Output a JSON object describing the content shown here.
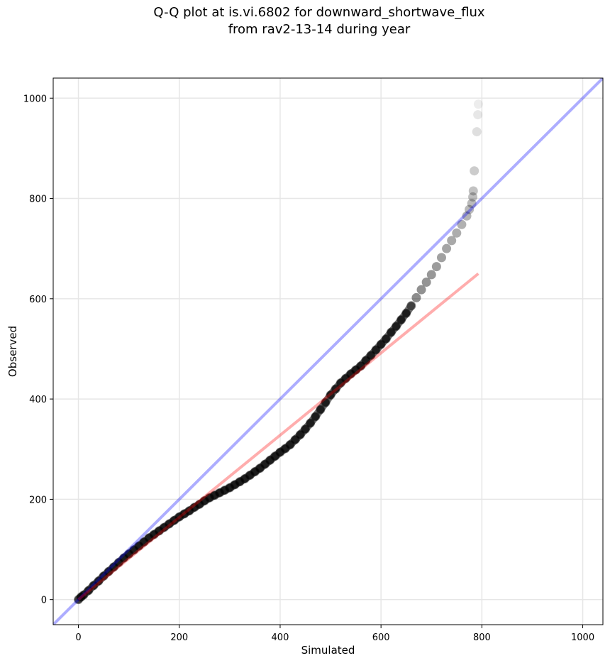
{
  "chart_data": {
    "type": "scatter",
    "title": [
      "Q-Q plot at is.vi.6802 for downward_shortwave_flux",
      "from rav2-13-14 during year"
    ],
    "xlabel": "Simulated",
    "ylabel": "Observed",
    "xlim": [
      -50,
      1040
    ],
    "ylim": [
      -50,
      1040
    ],
    "xticks": [
      0,
      200,
      400,
      600,
      800,
      1000
    ],
    "yticks": [
      0,
      200,
      400,
      600,
      800,
      1000
    ],
    "grid": true,
    "series": [
      {
        "kind": "quantile-points",
        "color": "#000000",
        "points": [
          [
            0,
            0
          ],
          [
            5,
            5
          ],
          [
            10,
            9
          ],
          [
            20,
            18
          ],
          [
            30,
            28
          ],
          [
            40,
            37
          ],
          [
            50,
            47
          ],
          [
            60,
            56
          ],
          [
            70,
            65
          ],
          [
            80,
            74
          ],
          [
            90,
            83
          ],
          [
            100,
            91
          ],
          [
            110,
            99
          ],
          [
            120,
            107
          ],
          [
            130,
            115
          ],
          [
            140,
            123
          ],
          [
            150,
            130
          ],
          [
            160,
            137
          ],
          [
            170,
            144
          ],
          [
            180,
            151
          ],
          [
            190,
            158
          ],
          [
            200,
            165
          ],
          [
            210,
            171
          ],
          [
            220,
            177
          ],
          [
            230,
            184
          ],
          [
            240,
            190
          ],
          [
            250,
            197
          ],
          [
            260,
            203
          ],
          [
            270,
            208
          ],
          [
            280,
            213
          ],
          [
            290,
            218
          ],
          [
            300,
            223
          ],
          [
            310,
            229
          ],
          [
            320,
            235
          ],
          [
            330,
            241
          ],
          [
            340,
            248
          ],
          [
            350,
            255
          ],
          [
            360,
            262
          ],
          [
            370,
            270
          ],
          [
            380,
            278
          ],
          [
            390,
            286
          ],
          [
            400,
            294
          ],
          [
            410,
            301
          ],
          [
            420,
            309
          ],
          [
            430,
            319
          ],
          [
            440,
            329
          ],
          [
            450,
            340
          ],
          [
            460,
            352
          ],
          [
            470,
            365
          ],
          [
            480,
            379
          ],
          [
            490,
            393
          ],
          [
            500,
            408
          ],
          [
            510,
            420
          ],
          [
            520,
            432
          ],
          [
            530,
            441
          ],
          [
            540,
            450
          ],
          [
            550,
            458
          ],
          [
            560,
            466
          ],
          [
            570,
            477
          ],
          [
            580,
            487
          ],
          [
            590,
            498
          ],
          [
            600,
            509
          ],
          [
            610,
            520
          ],
          [
            620,
            533
          ],
          [
            630,
            545
          ],
          [
            640,
            558
          ],
          [
            650,
            571
          ],
          [
            660,
            586
          ],
          [
            670,
            602
          ],
          [
            680,
            618
          ],
          [
            690,
            633
          ],
          [
            700,
            648
          ],
          [
            710,
            664
          ],
          [
            720,
            682
          ],
          [
            730,
            700
          ],
          [
            740,
            716
          ],
          [
            750,
            731
          ],
          [
            760,
            748
          ],
          [
            770,
            765
          ],
          [
            775,
            778
          ],
          [
            780,
            790
          ],
          [
            782,
            803
          ],
          [
            783,
            815
          ],
          [
            785,
            855
          ],
          [
            790,
            933
          ],
          [
            792,
            967
          ],
          [
            793,
            988
          ]
        ]
      },
      {
        "kind": "one-to-one-line",
        "color": "#0000ff",
        "x": [
          -50,
          1040
        ],
        "y": [
          -50,
          1040
        ]
      },
      {
        "kind": "fit-line",
        "color": "#ff0000",
        "x": [
          0,
          793
        ],
        "y": [
          0,
          650
        ]
      }
    ]
  }
}
